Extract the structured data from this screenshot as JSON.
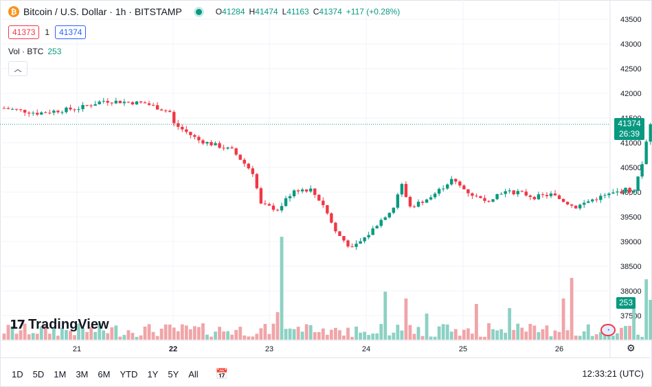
{
  "legend": {
    "symbol": "Bitcoin / U.S. Dollar · 1h · BITSTAMP",
    "icon": "bitcoin-logo-icon",
    "ohlc": [
      {
        "k": "O",
        "v": "41284"
      },
      {
        "k": "H",
        "v": "41474"
      },
      {
        "k": "L",
        "v": "41163"
      },
      {
        "k": "C",
        "v": "41374"
      },
      {
        "k": "",
        "v": "+117 (+0.28%)"
      }
    ]
  },
  "bidask": {
    "bid": "41373",
    "spread": "1",
    "ask": "41374"
  },
  "volume": {
    "label": "Vol · BTC",
    "value": "253"
  },
  "logo": {
    "text": "TradingView"
  },
  "price_tag": {
    "price": "41374",
    "countdown": "26:39"
  },
  "volume_tag": "253",
  "toolbar": {
    "timeframes": [
      "1D",
      "5D",
      "1M",
      "3M",
      "6M",
      "YTD",
      "1Y",
      "5Y",
      "All"
    ],
    "clock": "12:33:21 (UTC)"
  },
  "colors": {
    "up": "#089981",
    "down": "#f23645",
    "up_vol": "#8cd1c4",
    "down_vol": "#f0a5a8",
    "grid": "#f0f3fa"
  },
  "chart_data": {
    "type": "candlestick",
    "y_ticks": [
      43500,
      43000,
      42500,
      42000,
      41500,
      41000,
      40500,
      40000,
      39500,
      39000,
      38500,
      38000,
      37500
    ],
    "ylim": [
      37300,
      43700
    ],
    "x_labels": [
      "21",
      "22",
      "23",
      "24",
      "25",
      "26"
    ],
    "current_price": 41374,
    "close_path": [
      [
        0,
        41700
      ],
      [
        8,
        41600
      ],
      [
        18,
        41700
      ],
      [
        24,
        41850
      ],
      [
        34,
        41800
      ],
      [
        40,
        41620
      ],
      [
        41,
        41380
      ],
      [
        47,
        41050
      ],
      [
        55,
        40850
      ],
      [
        60,
        40400
      ],
      [
        62,
        39750
      ],
      [
        66,
        39650
      ],
      [
        70,
        40050
      ],
      [
        74,
        40050
      ],
      [
        77,
        39750
      ],
      [
        80,
        39200
      ],
      [
        84,
        38850
      ],
      [
        88,
        39150
      ],
      [
        90,
        39350
      ],
      [
        94,
        39700
      ],
      [
        96,
        40150
      ],
      [
        98,
        39700
      ],
      [
        103,
        39900
      ],
      [
        108,
        40250
      ],
      [
        112,
        40000
      ],
      [
        116,
        39800
      ],
      [
        120,
        40000
      ],
      [
        124,
        40000
      ],
      [
        128,
        39900
      ],
      [
        132,
        39950
      ],
      [
        138,
        39700
      ],
      [
        142,
        39850
      ],
      [
        146,
        39950
      ],
      [
        150,
        40050
      ],
      [
        152,
        40000
      ],
      [
        154,
        40600
      ],
      [
        155,
        41050
      ],
      [
        156,
        41374
      ]
    ],
    "volume_spikes": [
      [
        66,
        40
      ],
      [
        67,
        150
      ],
      [
        92,
        70
      ],
      [
        97,
        60
      ],
      [
        102,
        38
      ],
      [
        114,
        52
      ],
      [
        122,
        46
      ],
      [
        135,
        60
      ],
      [
        137,
        90
      ],
      [
        152,
        50
      ],
      [
        155,
        88
      ],
      [
        156,
        58
      ]
    ]
  }
}
